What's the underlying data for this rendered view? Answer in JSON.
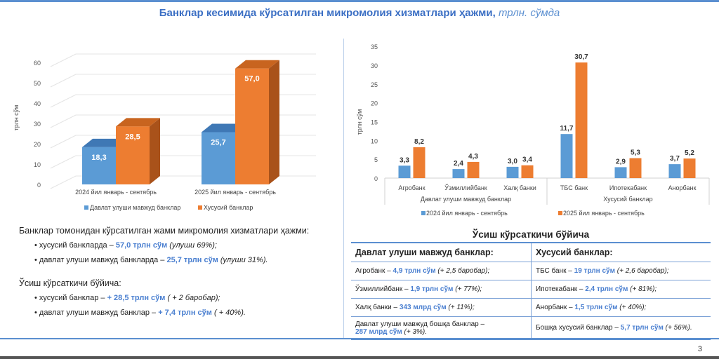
{
  "title": {
    "main": "Банклар кесимида кўрсатилган микромолия хизматлари ҳажми,",
    "unit": "трлн. сўмда"
  },
  "page_number": "3",
  "colors": {
    "blue": "#5b9bd5",
    "orange": "#ed7d31",
    "accent": "#4a7fd0"
  },
  "chart_data": [
    {
      "type": "bar",
      "style": "3d",
      "ylabel": "трлн сўм",
      "ylim": [
        0,
        60
      ],
      "yticks": [
        "0",
        "10",
        "20",
        "30",
        "40",
        "50",
        "60"
      ],
      "categories": [
        "2024 йил январь - сентябрь",
        "2025 йил январь - сентябрь"
      ],
      "series": [
        {
          "name": "Давлат улуши мавжуд банклар",
          "values": [
            18.3,
            25.7
          ],
          "labels": [
            "18,3",
            "25,7"
          ]
        },
        {
          "name": "Хусусий банклар",
          "values": [
            28.5,
            57.0
          ],
          "labels": [
            "28,5",
            "57,0"
          ]
        }
      ],
      "legend": "bottom"
    },
    {
      "type": "bar",
      "ylabel": "трлн сўм",
      "ylim": [
        0,
        35
      ],
      "yticks": [
        "0",
        "5",
        "10",
        "15",
        "20",
        "25",
        "30",
        "35"
      ],
      "categories": [
        "Агробанк",
        "Ўзмиллийбанк",
        "Халқ банки",
        "ТБС банк",
        "Ипотекабанк",
        "Анорбанк"
      ],
      "groups": [
        "Давлат улуши мавжуд банклар",
        "Хусусий банклар"
      ],
      "series": [
        {
          "name": "2024 йил январь - сентябрь",
          "values": [
            3.3,
            2.4,
            3.0,
            11.7,
            2.9,
            3.7
          ],
          "labels": [
            "3,3",
            "2,4",
            "3,0",
            "11,7",
            "2,9",
            "3,7"
          ]
        },
        {
          "name": "2025 йил январь - сентябрь",
          "values": [
            8.2,
            4.3,
            3.4,
            30.7,
            5.3,
            5.2
          ],
          "labels": [
            "8,2",
            "4,3",
            "3,4",
            "30,7",
            "5,3",
            "5,2"
          ]
        }
      ],
      "legend": "bottom"
    }
  ],
  "summary": {
    "heading": "Банклар томонидан кўрсатилган жами микромолия хизматлари ҳажми:",
    "items": [
      {
        "text": "• хусусий банкларда – ",
        "value": "57,0 трлн сўм",
        "note": " (улуши 69%);"
      },
      {
        "text": "• давлат улуши мавжуд банкларда – ",
        "value": "25,7 трлн сўм",
        "note": " (улуши 31%)."
      }
    ],
    "growth_heading": "Ўсиш кўрсаткичи бўйича:",
    "growth_items": [
      {
        "text": "• хусусий банклар – ",
        "value": "+ 28,5 трлн сўм",
        "note": " ( + 2 баробар);"
      },
      {
        "text": "• давлат улуши мавжуд банклар – ",
        "value": "+ 7,4 трлн сўм",
        "note": " ( + 40%)."
      }
    ]
  },
  "growth_table": {
    "title": "Ўсиш кўрсаткичи бўйича",
    "headers": [
      "Давлат улуши мавжуд банклар:",
      "Хусусий банклар:"
    ],
    "rows": [
      [
        {
          "bank": "Агробанк – ",
          "value": "4,9 трлн сўм",
          "note": " (+ 2,5 баробар);"
        },
        {
          "bank": "ТБС банк – ",
          "value": "19 трлн сўм",
          "note": " (+ 2,6 баробар);"
        }
      ],
      [
        {
          "bank": "Ўзмиллийбанк – ",
          "value": "1,9 трлн сўм",
          "note": " (+ 77%);"
        },
        {
          "bank": "Ипотекабанк – ",
          "value": "2,4 трлн сўм",
          "note": " (+ 81%);"
        }
      ],
      [
        {
          "bank": "Халқ банки – ",
          "value": "343 млрд сўм",
          "note": " (+ 11%);"
        },
        {
          "bank": "Анорбанк – ",
          "value": "1,5 трлн сўм",
          "note": " (+ 40%);"
        }
      ],
      [
        {
          "bank": "Давлат улуши мавжуд бошқа банклар – ",
          "value": "287 млрд сўм",
          "note": " (+ 3%)."
        },
        {
          "bank": "Бошқа хусусий банклар – ",
          "value": "5,7 трлн сўм",
          "note": " (+ 56%)."
        }
      ]
    ]
  }
}
